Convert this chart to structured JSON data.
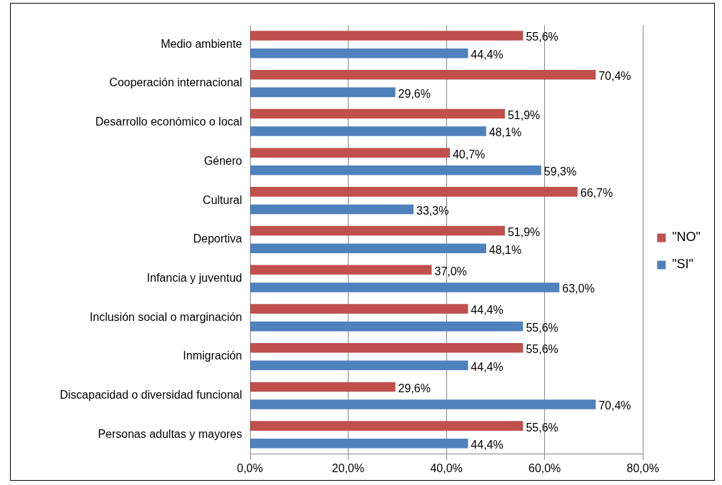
{
  "chart_data": {
    "type": "bar",
    "orientation": "horizontal",
    "categories": [
      "Medio ambiente",
      "Cooperación internacional",
      "Desarrollo económico o local",
      "Género",
      "Cultural",
      "Deportiva",
      "Infancia y juventud",
      "Inclusión social o marginación",
      "Inmigración",
      "Discapacidad o diversidad funcional",
      "Personas adultas y mayores"
    ],
    "series": [
      {
        "name": "\"NO\"",
        "color": "#c0504d",
        "values": [
          55.6,
          70.4,
          51.9,
          40.7,
          66.7,
          51.9,
          37.0,
          44.4,
          55.6,
          29.6,
          55.6
        ],
        "value_labels": [
          "55,6%",
          "70,4%",
          "51,9%",
          "40,7%",
          "66,7%",
          "51,9%",
          "37,0%",
          "44,4%",
          "55,6%",
          "29,6%",
          "55,6%"
        ]
      },
      {
        "name": "\"SI\"",
        "color": "#4f81bd",
        "values": [
          44.4,
          29.6,
          48.1,
          59.3,
          33.3,
          48.1,
          63.0,
          55.6,
          44.4,
          70.4,
          44.4
        ],
        "value_labels": [
          "44,4%",
          "29,6%",
          "48,1%",
          "59,3%",
          "33,3%",
          "48,1%",
          "63,0%",
          "55,6%",
          "44,4%",
          "70,4%",
          "44,4%"
        ]
      }
    ],
    "xlim": [
      0,
      80
    ],
    "xticks": [
      {
        "value": 0,
        "label": "0,0%"
      },
      {
        "value": 20,
        "label": "20,0%"
      },
      {
        "value": 40,
        "label": "40,0%"
      },
      {
        "value": 60,
        "label": "60,0%"
      },
      {
        "value": 80,
        "label": "80,0%"
      }
    ],
    "grid": "x",
    "legend": "right"
  }
}
